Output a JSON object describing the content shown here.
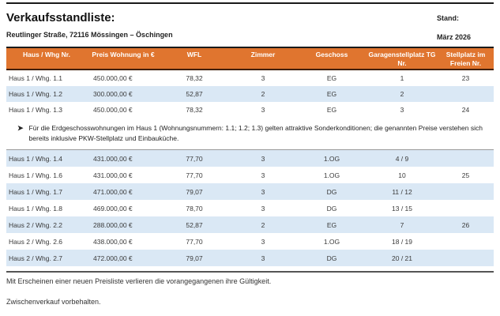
{
  "page": {
    "title": "Verkaufsstandliste:",
    "subtitle": "Reutlinger Straße, 72116 Mössingen – Öschingen",
    "stand_label": "Stand:",
    "stand_value": "März 2026"
  },
  "colors": {
    "table_header_bg": "#E0752F",
    "table_header_text": "#FFFFFF",
    "row_alternate_bg": "#DAE8F5",
    "rule_dark": "#1A1A1A",
    "rule_gray": "#999999"
  },
  "table": {
    "columns": [
      "Haus / Whg Nr.",
      "Preis Wohnung in €",
      "WFL",
      "Zimmer",
      "Geschoss",
      "Garagenstellplatz TG Nr.",
      "Stellplatz im Freien Nr."
    ],
    "rows_top": [
      {
        "unit": "Haus 1 / Whg. 1.1",
        "price": "450.000,00 €",
        "wfl": "78,32",
        "zimmer": "3",
        "geschoss": "EG",
        "garage": "1",
        "frei": "23"
      },
      {
        "unit": "Haus 1 / Whg. 1.2",
        "price": "300.000,00 €",
        "wfl": "52,87",
        "zimmer": "2",
        "geschoss": "EG",
        "garage": "2",
        "frei": ""
      },
      {
        "unit": "Haus 1 / Whg. 1.3",
        "price": "450.000,00 €",
        "wfl": "78,32",
        "zimmer": "3",
        "geschoss": "EG",
        "garage": "3",
        "frei": "24"
      }
    ],
    "rows_bottom": [
      {
        "unit": "Haus 1 / Whg. 1.4",
        "price": "431.000,00 €",
        "wfl": "77,70",
        "zimmer": "3",
        "geschoss": "1.OG",
        "garage": "4 / 9",
        "frei": ""
      },
      {
        "unit": "Haus 1 / Whg. 1.6",
        "price": "431.000,00 €",
        "wfl": "77,70",
        "zimmer": "3",
        "geschoss": "1.OG",
        "garage": "10",
        "frei": "25"
      },
      {
        "unit": "Haus 1 / Whg. 1.7",
        "price": "471.000,00 €",
        "wfl": "79,07",
        "zimmer": "3",
        "geschoss": "DG",
        "garage": "11 / 12",
        "frei": ""
      },
      {
        "unit": "Haus 1 / Whg. 1.8",
        "price": "469.000,00 €",
        "wfl": "78,70",
        "zimmer": "3",
        "geschoss": "DG",
        "garage": "13 / 15",
        "frei": ""
      },
      {
        "unit": "Haus 2 / Whg. 2.2",
        "price": "288.000,00 €",
        "wfl": "52,87",
        "zimmer": "2",
        "geschoss": "EG",
        "garage": "7",
        "frei": "26"
      },
      {
        "unit": "Haus 2 / Whg. 2.6",
        "price": "438.000,00 €",
        "wfl": "77,70",
        "zimmer": "3",
        "geschoss": "1.OG",
        "garage": "18 / 19",
        "frei": ""
      },
      {
        "unit": "Haus 2 / Whg. 2.7",
        "price": "472.000,00 €",
        "wfl": "79,07",
        "zimmer": "3",
        "geschoss": "DG",
        "garage": "20 / 21",
        "frei": ""
      }
    ]
  },
  "note": {
    "bullet": "➤",
    "text": "Für die Erdgeschosswohnungen im Haus 1 (Wohnungsnummern: 1.1; 1.2; 1.3) gelten attraktive Sonderkonditionen; die genannten Preise verstehen sich bereits inklusive PKW-Stellplatz und Einbauküche."
  },
  "footer": {
    "line1": "Mit Erscheinen einer neuen Preisliste verlieren die vorangegangenen ihre Gültigkeit.",
    "line2": "Zwischenverkauf vorbehalten."
  }
}
